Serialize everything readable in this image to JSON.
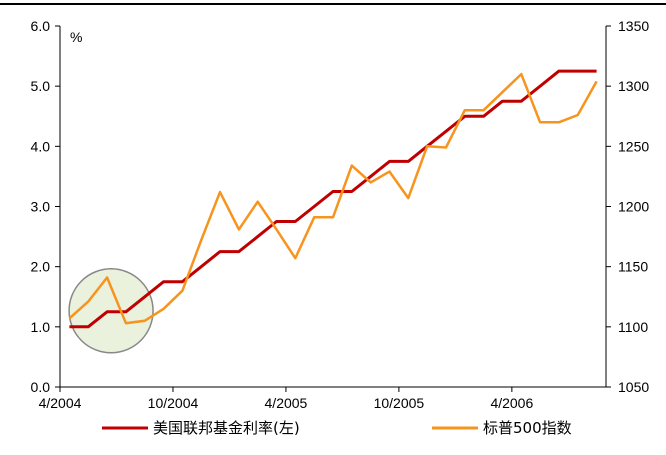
{
  "chart_data": {
    "type": "line",
    "x": [
      "2004-04",
      "2004-05",
      "2004-06",
      "2004-07",
      "2004-08",
      "2004-09",
      "2004-10",
      "2004-11",
      "2004-12",
      "2005-01",
      "2005-02",
      "2005-03",
      "2005-04",
      "2005-05",
      "2005-06",
      "2005-07",
      "2005-08",
      "2005-09",
      "2005-10",
      "2005-11",
      "2005-12",
      "2006-01",
      "2006-02",
      "2006-03",
      "2006-04",
      "2006-05",
      "2006-06",
      "2006-07",
      "2006-08"
    ],
    "x_tick_labels": [
      "4/2004",
      "10/2004",
      "4/2005",
      "10/2005",
      "4/2006"
    ],
    "series": [
      {
        "name": "美国联邦基金利率(左)",
        "axis": "left",
        "color": "#c00000",
        "values": [
          1.0,
          1.0,
          1.25,
          1.25,
          1.5,
          1.75,
          1.75,
          2.0,
          2.25,
          2.25,
          2.5,
          2.75,
          2.75,
          3.0,
          3.25,
          3.25,
          3.5,
          3.75,
          3.75,
          4.0,
          4.25,
          4.5,
          4.5,
          4.75,
          4.75,
          5.0,
          5.25,
          5.25,
          5.25
        ]
      },
      {
        "name": "标普500指数",
        "axis": "right",
        "color": "#f7941d",
        "values": [
          1107,
          1121,
          1141,
          1103,
          1105,
          1115,
          1130,
          1172,
          1212,
          1181,
          1204,
          1181,
          1157,
          1191,
          1191,
          1234,
          1220,
          1229,
          1207,
          1250,
          1249,
          1280,
          1280,
          1295,
          1310,
          1270,
          1270,
          1276,
          1304
        ]
      }
    ],
    "y_left": {
      "label": "%",
      "ylim": [
        0,
        6
      ],
      "ticks": [
        "0.0",
        "1.0",
        "2.0",
        "3.0",
        "4.0",
        "5.0",
        "6.0"
      ]
    },
    "y_right": {
      "ylim": [
        1050,
        1350
      ],
      "ticks": [
        "1050",
        "1100",
        "1150",
        "1200",
        "1250",
        "1300",
        "1350"
      ]
    },
    "annotation": {
      "type": "circle",
      "color": "#eaf1dd",
      "stroke": "#888888",
      "x": "2004-06",
      "y_left": 1.25
    },
    "grid": false,
    "legend_position": "bottom"
  }
}
